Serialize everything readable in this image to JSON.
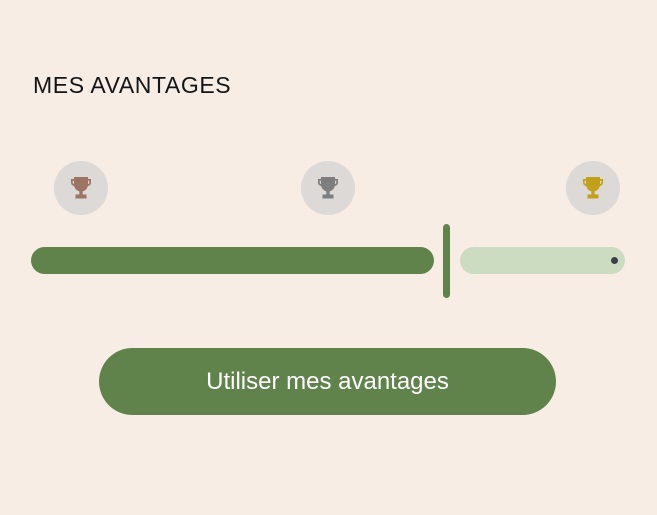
{
  "header": {
    "title": "MES AVANTAGES"
  },
  "progress": {
    "value": 0.69,
    "tiers": [
      {
        "icon": "trophy-icon",
        "level": "bronze",
        "color": "#9C7463"
      },
      {
        "icon": "trophy-icon",
        "level": "silver",
        "color": "#7E7E7E"
      },
      {
        "icon": "trophy-icon",
        "level": "gold",
        "color": "#C1A11A"
      }
    ],
    "filled_color": "#5F834B",
    "empty_color": "#CCDCC0"
  },
  "cta": {
    "label": "Utiliser mes avantages"
  },
  "colors": {
    "background": "#F7EDE5",
    "accent": "#5F834B"
  }
}
